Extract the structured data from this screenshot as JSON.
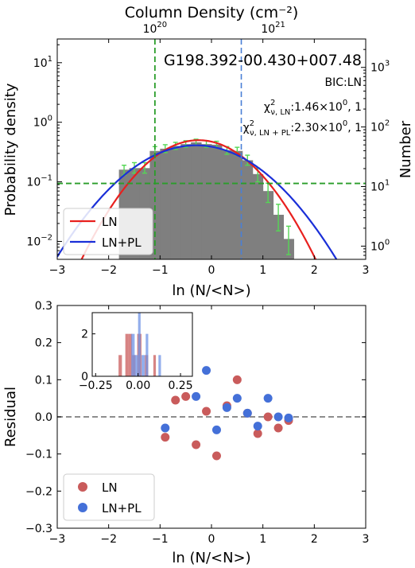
{
  "chart_data": [
    {
      "type": "histogram",
      "title": "G198.392-00.430+007.48",
      "top_xlabel": "Column Density (cm⁻²)",
      "top_xticks": [
        "10",
        "10"
      ],
      "top_xtick_exps": [
        "20",
        "21"
      ],
      "top_xtick_ln_positions": [
        -1.1,
        1.2
      ],
      "xlabel": "ln (N/<N>)",
      "ylabel": "Probability density",
      "ylabel_right": "Number",
      "xlim": [
        -3,
        3
      ],
      "ylim": [
        0.005,
        25
      ],
      "yscale": "log",
      "ylim_right": [
        0.6,
        3000
      ],
      "xticks": [
        "−3",
        "−2",
        "−1",
        "0",
        "1",
        "2",
        "3"
      ],
      "yticks": [
        {
          "base": "10",
          "exp": "−2",
          "value": 0.01
        },
        {
          "base": "10",
          "exp": "−1",
          "value": 0.1
        },
        {
          "base": "10",
          "exp": "0",
          "value": 1
        },
        {
          "base": "10",
          "exp": "1",
          "value": 10
        }
      ],
      "yticks_right": [
        {
          "base": "10",
          "exp": "0",
          "value": 1
        },
        {
          "base": "10",
          "exp": "1",
          "value": 10
        },
        {
          "base": "10",
          "exp": "2",
          "value": 100
        },
        {
          "base": "10",
          "exp": "3",
          "value": 1000
        }
      ],
      "annotations": {
        "bic": "BIC:LN",
        "chi_ln_prefix": "χ",
        "chi_ln_sup": "2",
        "chi_ln_sub": "ν, LN",
        "chi_ln_value": ":1.46×10",
        "chi_ln_exp": "0",
        "chi_ln_tail": ", 1",
        "chi_pl_prefix": "χ",
        "chi_pl_sup": "2",
        "chi_pl_sub": "ν, LN + PL",
        "chi_pl_value": ":2.30×10",
        "chi_pl_exp": "0",
        "chi_pl_tail": ", 1"
      },
      "bins": [
        {
          "x0": -1.8,
          "x1": -1.6,
          "y": 0.16
        },
        {
          "x0": -1.6,
          "x1": -1.4,
          "y": 0.17
        },
        {
          "x0": -1.4,
          "x1": -1.2,
          "y": 0.17
        },
        {
          "x0": -1.2,
          "x1": -1.0,
          "y": 0.33
        },
        {
          "x0": -1.0,
          "x1": -0.8,
          "y": 0.36
        },
        {
          "x0": -0.8,
          "x1": -0.6,
          "y": 0.4
        },
        {
          "x0": -0.6,
          "x1": -0.4,
          "y": 0.43
        },
        {
          "x0": -0.4,
          "x1": -0.2,
          "y": 0.46
        },
        {
          "x0": -0.2,
          "x1": 0.0,
          "y": 0.43
        },
        {
          "x0": 0.0,
          "x1": 0.2,
          "y": 0.42
        },
        {
          "x0": 0.2,
          "x1": 0.4,
          "y": 0.34
        },
        {
          "x0": 0.4,
          "x1": 0.6,
          "y": 0.33
        },
        {
          "x0": 0.6,
          "x1": 0.8,
          "y": 0.23
        },
        {
          "x0": 0.8,
          "x1": 1.0,
          "y": 0.135
        },
        {
          "x0": 1.0,
          "x1": 1.2,
          "y": 0.07
        },
        {
          "x0": 1.2,
          "x1": 1.4,
          "y": 0.028
        },
        {
          "x0": 1.4,
          "x1": 1.6,
          "y": 0.011
        }
      ],
      "errorbars": [
        {
          "x": -1.7,
          "lo": 0.13,
          "hi": 0.19
        },
        {
          "x": -1.5,
          "lo": 0.14,
          "hi": 0.21
        },
        {
          "x": -1.3,
          "lo": 0.14,
          "hi": 0.21
        },
        {
          "x": -1.1,
          "lo": 0.28,
          "hi": 0.39
        },
        {
          "x": -0.9,
          "lo": 0.31,
          "hi": 0.42
        },
        {
          "x": -0.7,
          "lo": 0.35,
          "hi": 0.46
        },
        {
          "x": -0.5,
          "lo": 0.38,
          "hi": 0.49
        },
        {
          "x": -0.3,
          "lo": 0.41,
          "hi": 0.52
        },
        {
          "x": -0.1,
          "lo": 0.38,
          "hi": 0.49
        },
        {
          "x": 0.1,
          "lo": 0.37,
          "hi": 0.48
        },
        {
          "x": 0.3,
          "lo": 0.29,
          "hi": 0.39
        },
        {
          "x": 0.5,
          "lo": 0.28,
          "hi": 0.38
        },
        {
          "x": 0.7,
          "lo": 0.19,
          "hi": 0.28
        },
        {
          "x": 0.9,
          "lo": 0.1,
          "hi": 0.17
        },
        {
          "x": 1.1,
          "lo": 0.045,
          "hi": 0.095
        },
        {
          "x": 1.3,
          "lo": 0.015,
          "hi": 0.042
        },
        {
          "x": 1.5,
          "lo": 0.006,
          "hi": 0.018
        }
      ],
      "vlines": [
        {
          "x": -1.1,
          "color": "#2a9d2a",
          "style": "dashed"
        },
        {
          "x": 0.58,
          "color": "#4a7fd6",
          "style": "dashed"
        }
      ],
      "hline": {
        "y": 0.094,
        "color": "#2a9d2a",
        "style": "dashed"
      },
      "series": [
        {
          "name": "LN",
          "color": "#e8201e",
          "mu": -0.25,
          "sigma": 0.75,
          "peak": 0.5
        },
        {
          "name": "LN+PL",
          "color": "#1a2fd8",
          "mu": -0.3,
          "sigma": 0.92,
          "peak": 0.41
        }
      ],
      "legend": [
        "LN",
        "LN+PL"
      ],
      "legend_position": "lower-left",
      "colors": {
        "hist": "#7f7f7f",
        "errorbar": "#55d655"
      }
    },
    {
      "type": "scatter",
      "xlabel": "ln (N/<N>)",
      "ylabel": "Residual",
      "xlim": [
        -3,
        3
      ],
      "ylim": [
        -0.3,
        0.3
      ],
      "xticks": [
        "−3",
        "−2",
        "−1",
        "0",
        "1",
        "2",
        "3"
      ],
      "yticks": [
        "−0.3",
        "−0.2",
        "−0.1",
        "0.0",
        "0.1",
        "0.2",
        "0.3"
      ],
      "zero_line": {
        "y": 0,
        "color": "#7f7f7f",
        "style": "dashed"
      },
      "series": [
        {
          "name": "LN",
          "color": "#c95b5b",
          "points": [
            [
              -0.9,
              -0.055
            ],
            [
              -0.7,
              0.045
            ],
            [
              -0.5,
              0.055
            ],
            [
              -0.3,
              -0.075
            ],
            [
              -0.1,
              0.015
            ],
            [
              0.1,
              -0.105
            ],
            [
              0.3,
              0.03
            ],
            [
              0.5,
              0.1
            ],
            [
              0.7,
              0.01
            ],
            [
              0.9,
              -0.045
            ],
            [
              1.1,
              0.0
            ],
            [
              1.3,
              -0.03
            ],
            [
              1.5,
              -0.01
            ]
          ]
        },
        {
          "name": "LN+PL",
          "color": "#4470d8",
          "points": [
            [
              -0.9,
              -0.03
            ],
            [
              -0.3,
              0.055
            ],
            [
              -0.1,
              0.125
            ],
            [
              0.1,
              -0.035
            ],
            [
              0.3,
              0.025
            ],
            [
              0.5,
              0.05
            ],
            [
              0.7,
              0.01
            ],
            [
              0.9,
              -0.025
            ],
            [
              1.1,
              0.05
            ],
            [
              1.3,
              0.0
            ],
            [
              1.5,
              -0.003
            ]
          ]
        }
      ],
      "legend": [
        "LN",
        "LN+PL"
      ],
      "legend_position": "lower-left",
      "inset": {
        "type": "histogram",
        "xlim": [
          -0.27,
          0.32
        ],
        "ylim": [
          0,
          3
        ],
        "xticks": [
          "−0.25",
          "0.00",
          "0.25"
        ],
        "xtick_values": [
          -0.25,
          0.0,
          0.25
        ],
        "yticks": [
          "0",
          "2"
        ],
        "ytick_values": [
          0,
          2
        ],
        "series": [
          {
            "name": "LN",
            "color": "#c95b5b",
            "bars": [
              {
                "x0": -0.115,
                "x1": -0.095,
                "h": 1
              },
              {
                "x0": -0.075,
                "x1": -0.055,
                "h": 2
              },
              {
                "x0": -0.055,
                "x1": -0.035,
                "h": 2
              },
              {
                "x0": -0.035,
                "x1": -0.015,
                "h": 1
              },
              {
                "x0": -0.005,
                "x1": 0.005,
                "h": 2
              },
              {
                "x0": 0.005,
                "x1": 0.02,
                "h": 2
              },
              {
                "x0": 0.04,
                "x1": 0.06,
                "h": 1
              },
              {
                "x0": 0.09,
                "x1": 0.105,
                "h": 1
              }
            ]
          },
          {
            "name": "LN+PL",
            "color": "#6f93e6",
            "bars": [
              {
                "x0": -0.04,
                "x1": -0.02,
                "h": 2
              },
              {
                "x0": -0.02,
                "x1": 0.0,
                "h": 1
              },
              {
                "x0": 0.0,
                "x1": 0.015,
                "h": 3
              },
              {
                "x0": 0.02,
                "x1": 0.04,
                "h": 1
              },
              {
                "x0": 0.045,
                "x1": 0.06,
                "h": 2
              },
              {
                "x0": 0.12,
                "x1": 0.135,
                "h": 1
              }
            ]
          }
        ]
      }
    }
  ]
}
